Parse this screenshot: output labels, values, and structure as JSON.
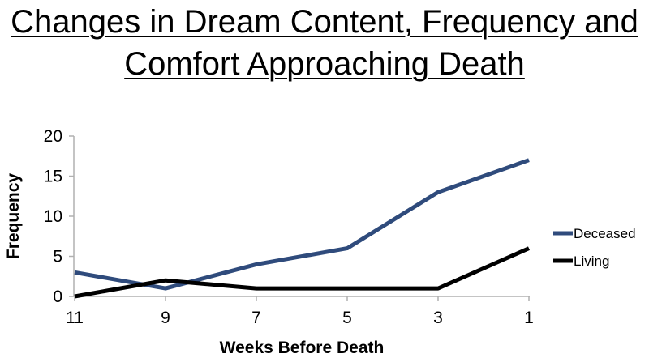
{
  "chart_data": {
    "type": "line",
    "title_lines": [
      "Changes in Dream Content, Frequency  and",
      "Comfort Approaching Death"
    ],
    "xlabel": "Weeks Before Death",
    "ylabel": "Frequency",
    "categories": [
      "11",
      "9",
      "7",
      "5",
      "3",
      "1"
    ],
    "ylim": [
      0,
      20
    ],
    "yticks": [
      "0",
      "5",
      "10",
      "15",
      "20"
    ],
    "grid": false,
    "legend": "right",
    "series": [
      {
        "name": "Deceased",
        "color": "#2f4b7c",
        "values": [
          3,
          1,
          4,
          6,
          13,
          17
        ]
      },
      {
        "name": "Living",
        "color": "#000000",
        "values": [
          0,
          2,
          1,
          1,
          1,
          6
        ]
      }
    ]
  }
}
